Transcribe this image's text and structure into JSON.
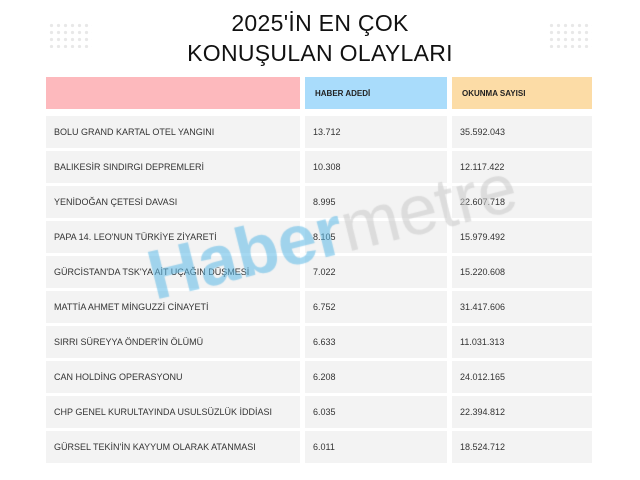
{
  "title": {
    "line1": "2025'İN EN ÇOK",
    "line2": "KONUŞULAN OLAYLARI"
  },
  "colors": {
    "header_event": "#fdb9bd",
    "header_count": "#a9dcfb",
    "header_reads": "#fcdca6",
    "row_bg": "#f3f3f3",
    "watermark_blue": "#5bb8e6"
  },
  "table": {
    "headers": [
      "",
      "HABER ADEDİ",
      "OKUNMA SAYISI"
    ],
    "rows": [
      [
        "BOLU GRAND KARTAL OTEL YANGINI",
        "13.712",
        "35.592.043"
      ],
      [
        "BALIKESİR SINDIRGI DEPREMLERİ",
        "10.308",
        "12.117.422"
      ],
      [
        "YENİDOĞAN ÇETESİ DAVASI",
        "8.995",
        "22.607.718"
      ],
      [
        "PAPA 14. LEO'NUN TÜRKİYE ZİYARETİ",
        "8.105",
        "15.979.492"
      ],
      [
        "GÜRCİSTAN'DA TSK'YA AİT UÇAĞIN DÜŞMESİ",
        "7.022",
        "15.220.608"
      ],
      [
        "MATTİA AHMET MİNGUZZİ CİNAYETİ",
        "6.752",
        "31.417.606"
      ],
      [
        "SIRRI SÜREYYA ÖNDER'İN ÖLÜMÜ",
        "6.633",
        "11.031.313"
      ],
      [
        "CAN HOLDİNG OPERASYONU",
        "6.208",
        "24.012.165"
      ],
      [
        "CHP GENEL KURULTAYINDA USULSÜZLÜK İDDİASI",
        "6.035",
        "22.394.812"
      ],
      [
        "GÜRSEL TEKİN'İN KAYYUM OLARAK ATANMASI",
        "6.011",
        "18.524.712"
      ]
    ]
  },
  "watermark": {
    "part1": "Haber",
    "part2": "metre"
  }
}
